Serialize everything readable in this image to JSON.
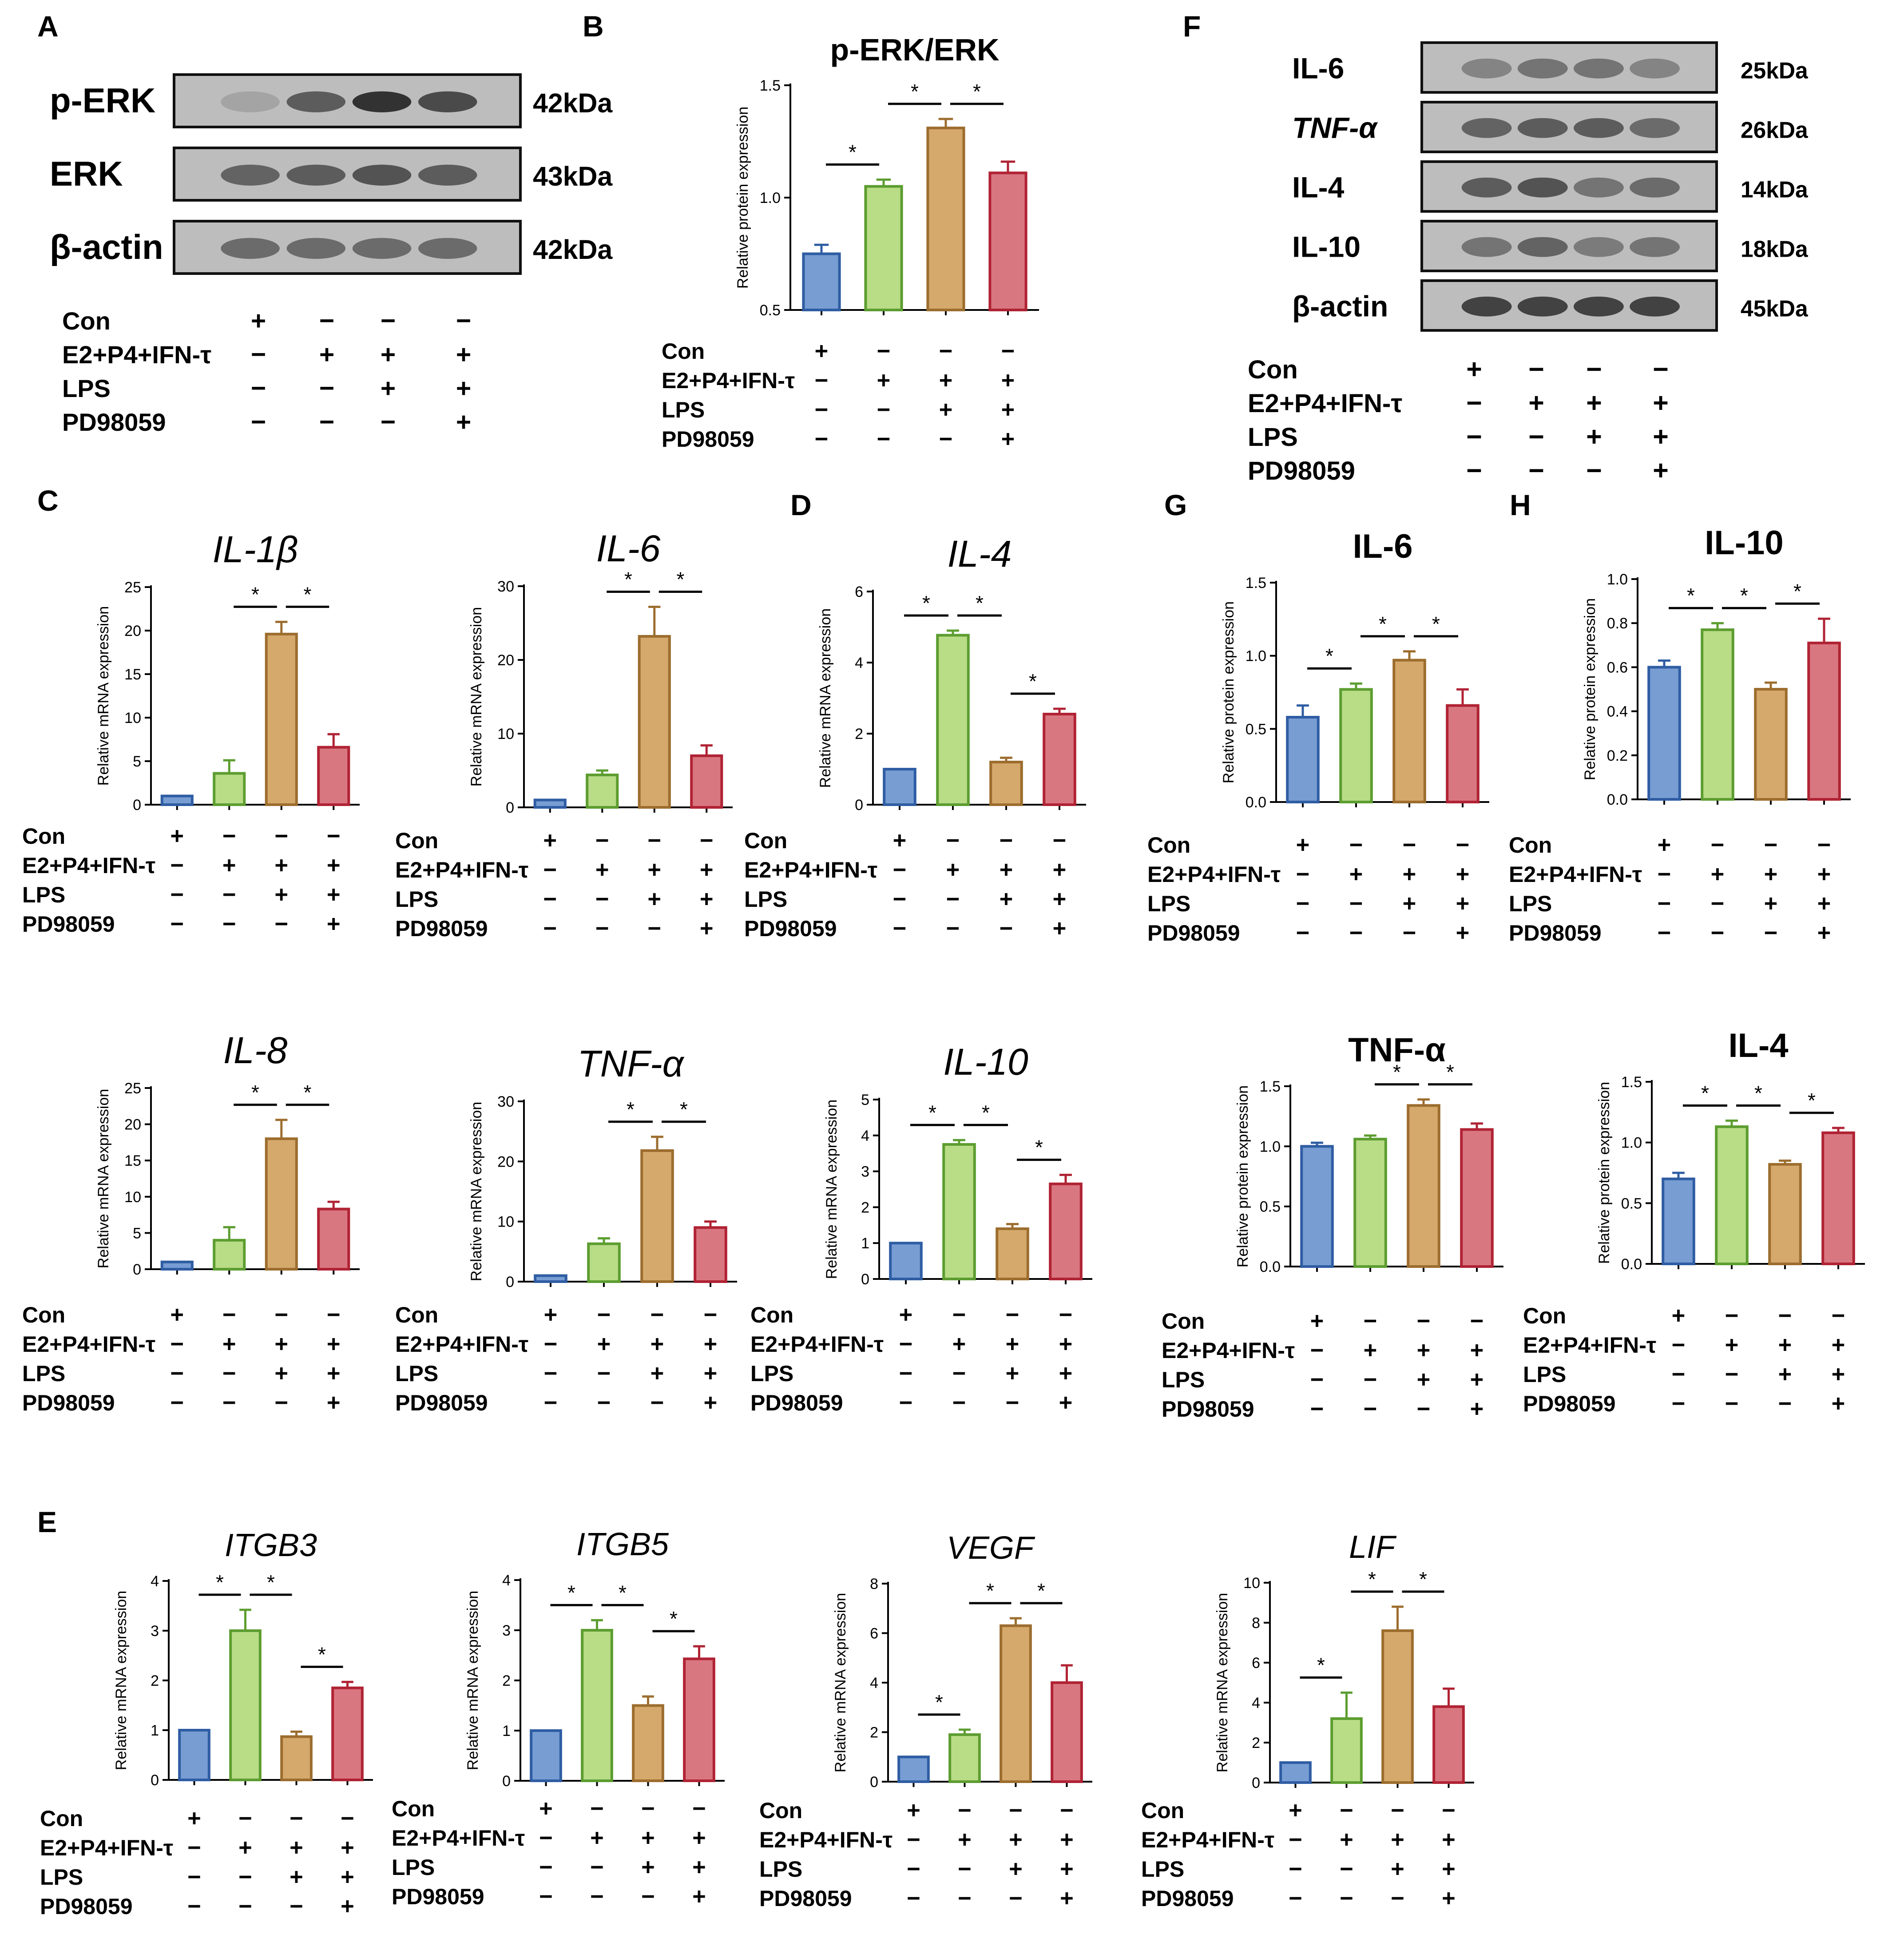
{
  "conditions": [
    {
      "label": "Con",
      "signs": [
        "+",
        "−",
        "−",
        "−"
      ]
    },
    {
      "label": "E2+P4+IFN-τ",
      "signs": [
        "−",
        "+",
        "+",
        "+"
      ]
    },
    {
      "label": "LPS",
      "signs": [
        "−",
        "−",
        "+",
        "+"
      ]
    },
    {
      "label": "PD98059",
      "signs": [
        "−",
        "−",
        "−",
        "+"
      ]
    }
  ],
  "colors": {
    "fills": [
      "#779dd3",
      "#b9dc87",
      "#d5a96c",
      "#d97781"
    ],
    "edges": [
      "#2f5da3",
      "#5c9d30",
      "#9c6d2e",
      "#b02334"
    ]
  },
  "sig_mark": "*",
  "blots": [
    {
      "panel": "A",
      "rows": [
        {
          "name": "p-ERK",
          "size": "42kDa"
        },
        {
          "name": "ERK",
          "size": "43kDa"
        },
        {
          "name": "β-actin",
          "size": "42kDa"
        }
      ]
    },
    {
      "panel": "F",
      "rows": [
        {
          "name": "IL-6",
          "size": "25kDa"
        },
        {
          "name": "TNF-α",
          "size": "26kDa"
        },
        {
          "name": "IL-4",
          "size": "14kDa"
        },
        {
          "name": "IL-10",
          "size": "18kDa"
        },
        {
          "name": "β-actin",
          "size": "45kDa"
        }
      ]
    }
  ],
  "chart_data": [
    {
      "panel": "B",
      "type": "bar",
      "title": "p-ERK/ERK",
      "ylabel": "Relative protein expression",
      "ylim": [
        0.5,
        1.5
      ],
      "yticks": [
        "0.5",
        "1.0",
        "1.5"
      ],
      "values": [
        0.75,
        1.05,
        1.31,
        1.11
      ],
      "errors": [
        0.04,
        0.03,
        0.04,
        0.05
      ],
      "sig": [
        [
          0,
          1
        ],
        [
          1,
          2
        ],
        [
          2,
          3
        ]
      ]
    },
    {
      "panel": "C",
      "type": "bar",
      "title": "IL-1β",
      "ylabel": "Relative mRNA expression",
      "ylim": [
        0,
        25
      ],
      "yticks": [
        "0",
        "5",
        "10",
        "15",
        "20",
        "25"
      ],
      "values": [
        1.0,
        3.6,
        19.6,
        6.6
      ],
      "errors": [
        0,
        1.5,
        1.4,
        1.5
      ],
      "sig": [
        [
          1,
          2
        ],
        [
          2,
          3
        ]
      ]
    },
    {
      "panel": "",
      "type": "bar",
      "title": "IL-6",
      "ylabel": "Relative mRNA expression",
      "ylim": [
        0,
        30
      ],
      "yticks": [
        "0",
        "10",
        "20",
        "30"
      ],
      "values": [
        1.0,
        4.4,
        23.2,
        7.0
      ],
      "errors": [
        0,
        0.6,
        4.0,
        1.4
      ],
      "sig": [
        [
          1,
          2
        ],
        [
          2,
          3
        ]
      ]
    },
    {
      "panel": "D",
      "type": "bar",
      "title": "IL-4",
      "ylabel": "Relative mRNA expression",
      "ylim": [
        0,
        6
      ],
      "yticks": [
        "0",
        "2",
        "4",
        "6"
      ],
      "values": [
        1.0,
        4.77,
        1.2,
        2.55
      ],
      "errors": [
        0,
        0.13,
        0.12,
        0.15
      ],
      "sig": [
        [
          0,
          1
        ],
        [
          1,
          2
        ],
        [
          2,
          3
        ]
      ]
    },
    {
      "panel": "G",
      "type": "bar",
      "title": "IL-6",
      "ylabel": "Relative protein expression",
      "ylim": [
        0,
        1.5
      ],
      "yticks": [
        "0.0",
        "0.5",
        "1.0",
        "1.5"
      ],
      "values": [
        0.58,
        0.77,
        0.97,
        0.66
      ],
      "errors": [
        0.08,
        0.04,
        0.06,
        0.11
      ],
      "sig": [
        [
          0,
          1
        ],
        [
          1,
          2
        ],
        [
          2,
          3
        ]
      ]
    },
    {
      "panel": "H",
      "type": "bar",
      "title": "IL-10",
      "ylabel": "Relative protein expression",
      "ylim": [
        0,
        1.0
      ],
      "yticks": [
        "0.0",
        "0.2",
        "0.4",
        "0.6",
        "0.8",
        "1.0"
      ],
      "values": [
        0.6,
        0.77,
        0.5,
        0.71
      ],
      "errors": [
        0.03,
        0.03,
        0.03,
        0.11
      ],
      "sig": [
        [
          0,
          1
        ],
        [
          1,
          2
        ],
        [
          2,
          3
        ]
      ]
    },
    {
      "panel": "",
      "type": "bar",
      "title": "IL-8",
      "ylabel": "Relative mRNA expression",
      "ylim": [
        0,
        25
      ],
      "yticks": [
        "0",
        "5",
        "10",
        "15",
        "20",
        "25"
      ],
      "values": [
        1.0,
        4.0,
        18.0,
        8.3
      ],
      "errors": [
        0,
        1.8,
        2.6,
        1.0
      ],
      "sig": [
        [
          1,
          2
        ],
        [
          2,
          3
        ]
      ]
    },
    {
      "panel": "",
      "type": "bar",
      "title": "TNF-α",
      "ylabel": "Relative mRNA expression",
      "ylim": [
        0,
        30
      ],
      "yticks": [
        "0",
        "10",
        "20",
        "30"
      ],
      "values": [
        1.0,
        6.3,
        21.8,
        9.0
      ],
      "errors": [
        0,
        0.9,
        2.3,
        1.0
      ],
      "sig": [
        [
          1,
          2
        ],
        [
          2,
          3
        ]
      ]
    },
    {
      "panel": "",
      "type": "bar",
      "title": "IL-10",
      "ylabel": "Relative mRNA expression",
      "ylim": [
        0,
        5
      ],
      "yticks": [
        "0",
        "1",
        "2",
        "3",
        "4",
        "5"
      ],
      "values": [
        1.0,
        3.75,
        1.4,
        2.65
      ],
      "errors": [
        0,
        0.12,
        0.13,
        0.25
      ],
      "sig": [
        [
          0,
          1
        ],
        [
          1,
          2
        ],
        [
          2,
          3
        ]
      ]
    },
    {
      "panel": "",
      "type": "bar",
      "title": "TNF-α",
      "ylabel": "Relative protein expression",
      "ylim": [
        0,
        1.5
      ],
      "yticks": [
        "0.0",
        "0.5",
        "1.0",
        "1.5"
      ],
      "values": [
        1.0,
        1.06,
        1.34,
        1.14
      ],
      "errors": [
        0.03,
        0.03,
        0.05,
        0.05
      ],
      "sig": [
        [
          1,
          2
        ],
        [
          2,
          3
        ]
      ]
    },
    {
      "panel": "",
      "type": "bar",
      "title": "IL-4",
      "ylabel": "Relative protein expression",
      "ylim": [
        0,
        1.5
      ],
      "yticks": [
        "0.0",
        "0.5",
        "1.0",
        "1.5"
      ],
      "values": [
        0.7,
        1.13,
        0.82,
        1.08
      ],
      "errors": [
        0.05,
        0.05,
        0.03,
        0.04
      ],
      "sig": [
        [
          0,
          1
        ],
        [
          1,
          2
        ],
        [
          2,
          3
        ]
      ]
    },
    {
      "panel": "E",
      "type": "bar",
      "title": "ITGB3",
      "ylabel": "Relative mRNA expression",
      "ylim": [
        0,
        4
      ],
      "yticks": [
        "0",
        "1",
        "2",
        "3",
        "4"
      ],
      "values": [
        1.0,
        3.0,
        0.87,
        1.85
      ],
      "errors": [
        0,
        0.42,
        0.1,
        0.12
      ],
      "sig": [
        [
          0,
          1
        ],
        [
          1,
          2
        ],
        [
          2,
          3
        ]
      ]
    },
    {
      "panel": "",
      "type": "bar",
      "title": "ITGB5",
      "ylabel": "Relative mRNA expression",
      "ylim": [
        0,
        4
      ],
      "yticks": [
        "0",
        "1",
        "2",
        "3",
        "4"
      ],
      "values": [
        1.0,
        3.0,
        1.5,
        2.43
      ],
      "errors": [
        0,
        0.2,
        0.18,
        0.25
      ],
      "sig": [
        [
          0,
          1
        ],
        [
          1,
          2
        ],
        [
          2,
          3
        ]
      ]
    },
    {
      "panel": "",
      "type": "bar",
      "title": "VEGF",
      "ylabel": "Relative mRNA expression",
      "ylim": [
        0,
        8
      ],
      "yticks": [
        "0",
        "2",
        "4",
        "6",
        "8"
      ],
      "values": [
        1.0,
        1.9,
        6.3,
        4.0
      ],
      "errors": [
        0,
        0.2,
        0.3,
        0.7
      ],
      "sig": [
        [
          0,
          1
        ],
        [
          1,
          2
        ],
        [
          2,
          3
        ]
      ]
    },
    {
      "panel": "",
      "type": "bar",
      "title": "LIF",
      "ylabel": "Relative mRNA expression",
      "ylim": [
        0,
        10
      ],
      "yticks": [
        "0",
        "2",
        "4",
        "6",
        "8",
        "10"
      ],
      "values": [
        1.0,
        3.2,
        7.6,
        3.8
      ],
      "errors": [
        0,
        1.3,
        1.2,
        0.9
      ],
      "sig": [
        [
          0,
          1
        ],
        [
          1,
          2
        ],
        [
          2,
          3
        ]
      ]
    }
  ]
}
